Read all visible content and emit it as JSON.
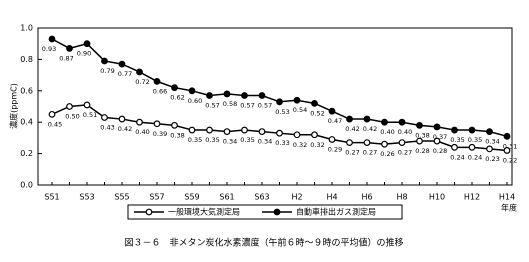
{
  "chart_data": {
    "type": "line",
    "title": "図３－６　非メタン炭化水素濃度（午前６時～９時の平均値）の推移",
    "y_label": "濃度(ppmC)",
    "x_label": "年度",
    "categories": [
      "S51",
      null,
      "S53",
      null,
      "S55",
      null,
      "S57",
      null,
      "S59",
      null,
      "S61",
      null,
      "S63",
      null,
      "H2",
      null,
      "H4",
      null,
      "H6",
      null,
      "H8",
      null,
      "H10",
      null,
      "H12",
      null,
      "H14"
    ],
    "ylim": [
      0,
      1
    ],
    "yticks": [
      {
        "value": 0,
        "label": "0.0"
      },
      {
        "value": 0.2,
        "label": "0.2"
      },
      {
        "value": 0.4,
        "label": "0.4"
      },
      {
        "value": 0.6,
        "label": "0.6"
      },
      {
        "value": 0.8,
        "label": "0.8"
      },
      {
        "value": 1,
        "label": "1.0"
      }
    ],
    "grid": false,
    "series": [
      {
        "name": "一般環境大気測定局",
        "color": "#000000",
        "marker": "open",
        "values": [
          0.45,
          0.5,
          0.51,
          0.43,
          0.42,
          0.4,
          0.39,
          0.38,
          0.35,
          0.35,
          0.34,
          0.35,
          0.34,
          0.33,
          0.32,
          0.32,
          0.29,
          0.27,
          0.27,
          0.26,
          0.27,
          0.28,
          0.28,
          0.24,
          0.24,
          0.23,
          0.22
        ],
        "value_labels": [
          "0.45",
          "0.50",
          "0.51",
          "0.43",
          "0.42",
          "0.40",
          "0.39",
          "0.38",
          "0.35",
          "0.35",
          "0.34",
          "0.35",
          "0.34",
          "0.33",
          "0.32",
          "0.32",
          "0.29",
          "0.27",
          "0.27",
          "0.26",
          "0.27",
          "0.28",
          "0.28",
          "0.24",
          "0.24",
          "0.23",
          "0.22"
        ]
      },
      {
        "name": "自動車排出ガス測定局",
        "color": "#000000",
        "marker": "filled",
        "values": [
          0.93,
          0.87,
          0.9,
          0.79,
          0.77,
          0.72,
          0.66,
          0.62,
          0.6,
          0.57,
          0.58,
          0.57,
          0.57,
          0.53,
          0.54,
          0.52,
          0.47,
          0.42,
          0.42,
          0.4,
          0.4,
          0.38,
          0.37,
          0.35,
          0.35,
          0.34,
          0.31
        ],
        "value_labels": [
          "0.93",
          "0.87",
          "0.90",
          "0.79",
          "0.77",
          "0.72",
          "0.66",
          "0.62",
          "0.60",
          "0.57",
          "0.58",
          "0.57",
          "0.57",
          "0.53",
          "0.54",
          "0.52",
          "0.47",
          "0.42",
          "0.42",
          "0.40",
          "0.40",
          "0.38",
          "0.37",
          "0.35",
          "0.35",
          "0.34",
          "0.31"
        ]
      }
    ]
  }
}
